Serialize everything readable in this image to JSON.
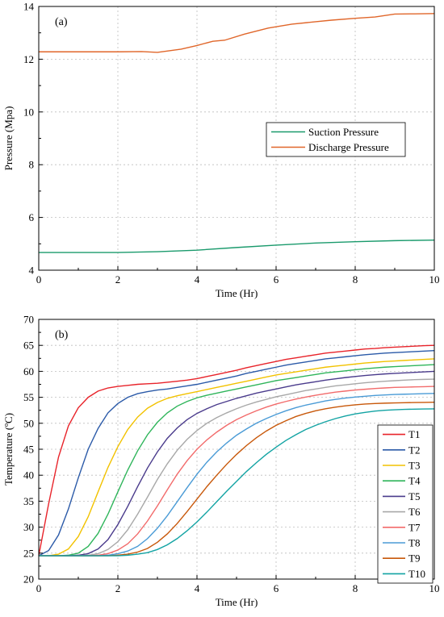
{
  "chart_data": [
    {
      "type": "line",
      "panel_label": "(a)",
      "xlabel": "Time (Hr)",
      "ylabel": "Pressure (Mpa)",
      "xlim": [
        0,
        10
      ],
      "ylim": [
        4,
        14
      ],
      "xticks": [
        0,
        2,
        4,
        6,
        8,
        10
      ],
      "yticks": [
        4,
        6,
        8,
        10,
        12,
        14
      ],
      "grid": true,
      "legend": "center-right",
      "series": [
        {
          "name": "Suction Pressure",
          "color": "#1a9a6c",
          "x": [
            0,
            1,
            2,
            3,
            4,
            5,
            6,
            7,
            8,
            9,
            10
          ],
          "y": [
            4.67,
            4.67,
            4.67,
            4.7,
            4.76,
            4.86,
            4.95,
            5.03,
            5.08,
            5.12,
            5.14
          ]
        },
        {
          "name": "Discharge Pressure",
          "color": "#e0662a",
          "x": [
            0,
            1,
            2,
            2.6,
            3.0,
            3.6,
            4.0,
            4.4,
            4.7,
            5.2,
            5.8,
            6.4,
            7.0,
            7.4,
            8.0,
            8.5,
            9.0,
            9.5,
            10
          ],
          "y": [
            12.28,
            12.28,
            12.28,
            12.29,
            12.26,
            12.38,
            12.52,
            12.68,
            12.72,
            12.95,
            13.18,
            13.33,
            13.42,
            13.48,
            13.55,
            13.6,
            13.71,
            13.72,
            13.73
          ]
        }
      ]
    },
    {
      "type": "line",
      "panel_label": "(b)",
      "xlabel": "Time (Hr)",
      "ylabel": "Temperature (ºC)",
      "xlim": [
        0,
        10
      ],
      "ylim": [
        20,
        70
      ],
      "xticks": [
        0,
        2,
        4,
        6,
        8,
        10
      ],
      "yticks": [
        20,
        25,
        30,
        35,
        40,
        45,
        50,
        55,
        60,
        65,
        70
      ],
      "grid": true,
      "legend": "right",
      "x": [
        0,
        0.25,
        0.5,
        0.75,
        1,
        1.25,
        1.5,
        1.75,
        2,
        2.25,
        2.5,
        2.75,
        3,
        3.25,
        3.5,
        3.75,
        4,
        4.25,
        4.5,
        4.75,
        5,
        5.25,
        5.5,
        5.75,
        6,
        6.25,
        6.5,
        6.75,
        7,
        7.25,
        7.5,
        7.75,
        8,
        8.25,
        8.5,
        8.75,
        9,
        9.25,
        9.5,
        9.75,
        10
      ],
      "series": [
        {
          "name": "T1",
          "color": "#e8232a",
          "values": [
            24.5,
            34.5,
            43.5,
            49.5,
            53.0,
            55.0,
            56.2,
            56.8,
            57.1,
            57.3,
            57.5,
            57.6,
            57.7,
            57.9,
            58.1,
            58.3,
            58.6,
            59.0,
            59.4,
            59.8,
            60.2,
            60.7,
            61.1,
            61.5,
            61.9,
            62.3,
            62.6,
            62.9,
            63.2,
            63.5,
            63.7,
            63.9,
            64.1,
            64.3,
            64.4,
            64.55,
            64.65,
            64.75,
            64.85,
            64.95,
            65.0
          ]
        },
        {
          "name": "T2",
          "color": "#2b5aa8",
          "values": [
            24.5,
            25.5,
            28.5,
            33.5,
            39.5,
            45.0,
            49.0,
            52.0,
            53.8,
            55.0,
            55.7,
            56.1,
            56.4,
            56.6,
            56.9,
            57.2,
            57.5,
            57.9,
            58.3,
            58.7,
            59.1,
            59.6,
            60.0,
            60.4,
            60.8,
            61.2,
            61.5,
            61.8,
            62.1,
            62.4,
            62.6,
            62.8,
            63.0,
            63.2,
            63.35,
            63.5,
            63.6,
            63.7,
            63.8,
            63.9,
            64.0
          ]
        },
        {
          "name": "T3",
          "color": "#f2c200",
          "values": [
            24.5,
            24.5,
            24.8,
            25.8,
            28.2,
            32.0,
            36.8,
            41.5,
            45.5,
            48.8,
            51.2,
            52.9,
            54.0,
            54.8,
            55.3,
            55.7,
            56.1,
            56.5,
            56.9,
            57.3,
            57.7,
            58.1,
            58.5,
            58.9,
            59.3,
            59.6,
            59.9,
            60.2,
            60.5,
            60.8,
            61.0,
            61.2,
            61.4,
            61.6,
            61.75,
            61.9,
            62.0,
            62.1,
            62.2,
            62.3,
            62.4
          ]
        },
        {
          "name": "T4",
          "color": "#2fb55b",
          "values": [
            24.5,
            24.5,
            24.5,
            24.6,
            25.0,
            26.3,
            28.8,
            32.5,
            36.8,
            41.0,
            44.7,
            47.8,
            50.2,
            52.0,
            53.3,
            54.2,
            54.9,
            55.4,
            55.8,
            56.2,
            56.6,
            57.0,
            57.4,
            57.8,
            58.2,
            58.5,
            58.8,
            59.1,
            59.4,
            59.7,
            59.9,
            60.1,
            60.3,
            60.5,
            60.65,
            60.8,
            60.9,
            61.0,
            61.1,
            61.2,
            61.3
          ]
        },
        {
          "name": "T5",
          "color": "#4a3b8c",
          "values": [
            24.5,
            24.5,
            24.5,
            24.5,
            24.6,
            24.9,
            25.8,
            27.6,
            30.5,
            34.0,
            37.8,
            41.4,
            44.5,
            47.1,
            49.1,
            50.7,
            51.9,
            52.8,
            53.6,
            54.2,
            54.8,
            55.3,
            55.8,
            56.2,
            56.6,
            57.0,
            57.4,
            57.7,
            58.0,
            58.3,
            58.55,
            58.8,
            59.0,
            59.2,
            59.35,
            59.5,
            59.6,
            59.7,
            59.8,
            59.9,
            60.0
          ]
        },
        {
          "name": "T6",
          "color": "#a8a8a8",
          "values": [
            24.5,
            24.5,
            24.5,
            24.5,
            24.5,
            24.6,
            24.9,
            25.7,
            27.2,
            29.5,
            32.5,
            35.8,
            39.2,
            42.2,
            44.8,
            46.9,
            48.6,
            50.0,
            51.1,
            52.0,
            52.8,
            53.5,
            54.1,
            54.6,
            55.1,
            55.5,
            55.9,
            56.3,
            56.6,
            56.9,
            57.2,
            57.4,
            57.6,
            57.8,
            57.95,
            58.1,
            58.2,
            58.3,
            58.4,
            58.45,
            58.5
          ]
        },
        {
          "name": "T7",
          "color": "#f26b6b",
          "values": [
            24.5,
            24.5,
            24.5,
            24.5,
            24.5,
            24.5,
            24.6,
            24.9,
            25.6,
            26.8,
            28.7,
            31.2,
            34.1,
            37.2,
            40.2,
            42.8,
            45.0,
            46.8,
            48.3,
            49.6,
            50.7,
            51.6,
            52.4,
            53.1,
            53.7,
            54.2,
            54.65,
            55.05,
            55.4,
            55.7,
            56.0,
            56.2,
            56.4,
            56.55,
            56.7,
            56.8,
            56.9,
            56.95,
            57.0,
            57.05,
            57.1
          ]
        },
        {
          "name": "T8",
          "color": "#4a9bd6",
          "values": [
            24.5,
            24.5,
            24.5,
            24.5,
            24.5,
            24.5,
            24.5,
            24.6,
            24.9,
            25.4,
            26.3,
            27.8,
            29.8,
            32.2,
            34.9,
            37.6,
            40.2,
            42.5,
            44.5,
            46.2,
            47.7,
            48.9,
            50.0,
            50.9,
            51.7,
            52.4,
            53.0,
            53.5,
            53.9,
            54.3,
            54.6,
            54.85,
            55.05,
            55.2,
            55.35,
            55.45,
            55.55,
            55.6,
            55.65,
            55.7,
            55.75
          ]
        },
        {
          "name": "T9",
          "color": "#c8580a",
          "values": [
            24.5,
            24.5,
            24.5,
            24.5,
            24.5,
            24.5,
            24.5,
            24.5,
            24.6,
            24.8,
            25.2,
            25.9,
            27.1,
            28.7,
            30.7,
            33.0,
            35.4,
            37.8,
            40.0,
            42.1,
            44.0,
            45.7,
            47.2,
            48.5,
            49.6,
            50.5,
            51.3,
            51.9,
            52.4,
            52.8,
            53.1,
            53.35,
            53.55,
            53.7,
            53.8,
            53.87,
            53.92,
            53.96,
            54.0,
            54.02,
            54.05
          ]
        },
        {
          "name": "T10",
          "color": "#12a3a3",
          "values": [
            24.5,
            24.5,
            24.5,
            24.5,
            24.5,
            24.5,
            24.5,
            24.5,
            24.5,
            24.6,
            24.8,
            25.1,
            25.7,
            26.6,
            27.8,
            29.3,
            31.0,
            32.9,
            34.9,
            36.9,
            38.8,
            40.7,
            42.4,
            44.0,
            45.4,
            46.7,
            47.8,
            48.8,
            49.6,
            50.3,
            50.9,
            51.4,
            51.8,
            52.1,
            52.35,
            52.5,
            52.6,
            52.68,
            52.72,
            52.75,
            52.78
          ]
        }
      ]
    }
  ]
}
